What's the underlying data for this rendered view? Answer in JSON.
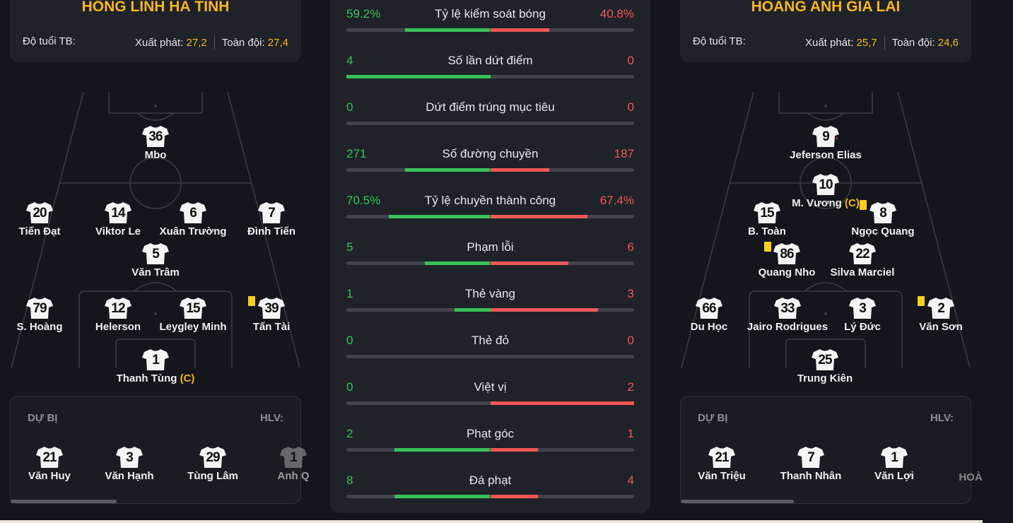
{
  "home": {
    "name": "HỒNG LĨNH HÀ TĨNH",
    "age_label": "Độ tuổi TB:",
    "start_label": "Xuất phát:",
    "start_value": "27,2",
    "squad_label": "Toàn đội:",
    "squad_value": "27,4",
    "players": [
      {
        "num": "36",
        "name": "Mbo"
      },
      {
        "num": "20",
        "name": "Tiến Đạt"
      },
      {
        "num": "14",
        "name": "Viktor Le"
      },
      {
        "num": "6",
        "name": "Xuân Trường"
      },
      {
        "num": "7",
        "name": "Đình Tiến"
      },
      {
        "num": "5",
        "name": "Văn Trâm"
      },
      {
        "num": "79",
        "name": "S. Hoàng"
      },
      {
        "num": "12",
        "name": "Helerson"
      },
      {
        "num": "15",
        "name": "Leygley Minh"
      },
      {
        "num": "39",
        "name": "Tấn Tài"
      },
      {
        "num": "1",
        "name": "Thanh Tùng",
        "captain": "(C)"
      }
    ],
    "bench_title": "DỰ BỊ",
    "coach_label": "HLV:",
    "bench": [
      {
        "num": "21",
        "name": "Văn Huy"
      },
      {
        "num": "3",
        "name": "Văn Hạnh"
      },
      {
        "num": "29",
        "name": "Tùng Lâm"
      },
      {
        "num": "1",
        "name": "Anh Q"
      }
    ]
  },
  "away": {
    "name": "HOÀNG ANH GIA LAI",
    "age_label": "Độ tuổi TB:",
    "start_label": "Xuất phát:",
    "start_value": "25,7",
    "squad_label": "Toàn đội:",
    "squad_value": "24,6",
    "players": [
      {
        "num": "9",
        "name": "Jeferson Elias"
      },
      {
        "num": "10",
        "name": "M. Vương",
        "captain": "(C)"
      },
      {
        "num": "15",
        "name": "B. Toàn"
      },
      {
        "num": "8",
        "name": "Ngọc Quang"
      },
      {
        "num": "86",
        "name": "Quang Nho"
      },
      {
        "num": "22",
        "name": "Silva Marciel"
      },
      {
        "num": "66",
        "name": "Du Học"
      },
      {
        "num": "33",
        "name": "Jairo Rodrigues"
      },
      {
        "num": "3",
        "name": "Lý Đức"
      },
      {
        "num": "2",
        "name": "Văn Sơn"
      },
      {
        "num": "25",
        "name": "Trung Kiên"
      }
    ],
    "bench_title": "DỰ BỊ",
    "coach_label": "HLV:",
    "bench": [
      {
        "num": "21",
        "name": "Văn Triệu"
      },
      {
        "num": "7",
        "name": "Thanh Nhân"
      },
      {
        "num": "1",
        "name": "Văn Lợi"
      },
      {
        "num": "",
        "name": "HOÀ"
      }
    ]
  },
  "stats": [
    {
      "label": "Tỷ lệ kiểm soát bóng",
      "home": "59.2%",
      "away": "40.8%",
      "home_share": 0.592,
      "away_share": 0.408
    },
    {
      "label": "Số lần dứt điểm",
      "home": "4",
      "away": "0",
      "home_share": 1.0,
      "away_share": 0.0
    },
    {
      "label": "Dứt điểm trúng mục tiêu",
      "home": "0",
      "away": "0",
      "home_share": 0.0,
      "away_share": 0.0
    },
    {
      "label": "Số đường chuyền",
      "home": "271",
      "away": "187",
      "home_share": 0.592,
      "away_share": 0.408
    },
    {
      "label": "Tỷ lệ chuyền thành công",
      "home": "70.5%",
      "away": "67.4%",
      "home_share": 0.705,
      "away_share": 0.674
    },
    {
      "label": "Phạm lỗi",
      "home": "5",
      "away": "6",
      "home_share": 0.455,
      "away_share": 0.545
    },
    {
      "label": "Thẻ vàng",
      "home": "1",
      "away": "3",
      "home_share": 0.25,
      "away_share": 0.75
    },
    {
      "label": "Thẻ đỏ",
      "home": "0",
      "away": "0",
      "home_share": 0.0,
      "away_share": 0.0
    },
    {
      "label": "Việt vị",
      "home": "0",
      "away": "2",
      "home_share": 0.0,
      "away_share": 1.0
    },
    {
      "label": "Phạt góc",
      "home": "2",
      "away": "1",
      "home_share": 0.667,
      "away_share": 0.333
    },
    {
      "label": "Đá phạt",
      "home": "8",
      "away": "4",
      "home_share": 0.667,
      "away_share": 0.333
    }
  ]
}
